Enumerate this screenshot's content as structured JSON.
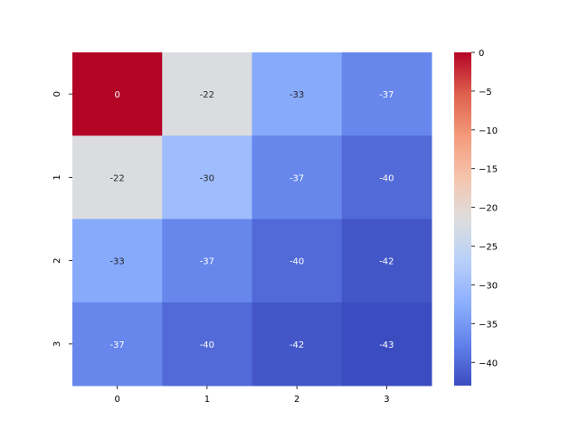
{
  "chart_data": {
    "type": "heatmap",
    "row_labels": [
      "0",
      "1",
      "2",
      "3"
    ],
    "col_labels": [
      "0",
      "1",
      "2",
      "3"
    ],
    "values": [
      [
        0,
        -22,
        -33,
        -37
      ],
      [
        -22,
        -30,
        -37,
        -40
      ],
      [
        -33,
        -37,
        -40,
        -42
      ],
      [
        -37,
        -40,
        -42,
        -43
      ]
    ],
    "annotations": [
      [
        "0",
        "-22",
        "-33",
        "-37"
      ],
      [
        "-22",
        "-30",
        "-37",
        "-40"
      ],
      [
        "-33",
        "-37",
        "-40",
        "-42"
      ],
      [
        "-37",
        "-40",
        "-42",
        "-43"
      ]
    ],
    "colormap": "coolwarm",
    "colorbar": {
      "range": [
        -43,
        0
      ],
      "ticks": [
        0,
        -5,
        -10,
        -15,
        -20,
        -25,
        -30,
        -35,
        -40
      ],
      "tick_labels": [
        "0",
        "−5",
        "−10",
        "−15",
        "−20",
        "−25",
        "−30",
        "−35",
        "−40"
      ]
    },
    "title": "",
    "xlabel": "",
    "ylabel": ""
  }
}
